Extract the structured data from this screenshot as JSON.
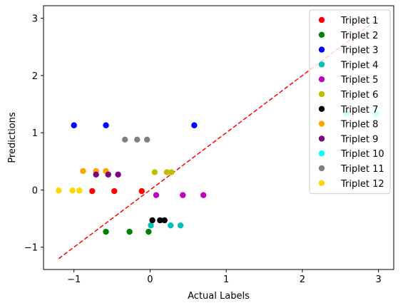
{
  "chart_data": {
    "type": "scatter",
    "title": "",
    "xlabel": "Actual Labels",
    "ylabel": "Predictions",
    "xlim": [
      -1.4,
      3.2
    ],
    "ylim": [
      -1.39,
      3.22
    ],
    "xticks": [
      -1,
      0,
      1,
      2,
      3
    ],
    "xtick_labels": [
      "−1",
      "0",
      "1",
      "2",
      "3"
    ],
    "yticks": [
      -1,
      0,
      1,
      2,
      3
    ],
    "ytick_labels": [
      "−1",
      "0",
      "1",
      "2",
      "3"
    ],
    "grid": false,
    "legend_position": "top-right",
    "reference_line": {
      "x": [
        -1.2,
        3.0
      ],
      "y": [
        -1.2,
        3.0
      ],
      "style": "dashed",
      "color": "#ff0000"
    },
    "series": [
      {
        "name": "Triplet 1",
        "color": "#ff0000",
        "points": [
          [
            -0.76,
            -0.02
          ],
          [
            -0.47,
            -0.02
          ],
          [
            -0.11,
            -0.02
          ]
        ]
      },
      {
        "name": "Triplet 2",
        "color": "#008000",
        "points": [
          [
            -0.58,
            -0.73
          ],
          [
            -0.27,
            -0.73
          ],
          [
            -0.02,
            -0.73
          ]
        ]
      },
      {
        "name": "Triplet 3",
        "color": "#0000ff",
        "points": [
          [
            -1.0,
            1.13
          ],
          [
            -0.58,
            1.13
          ],
          [
            0.58,
            1.13
          ]
        ]
      },
      {
        "name": "Triplet 4",
        "color": "#00bfbf",
        "points": [
          [
            0.01,
            -0.62
          ],
          [
            0.27,
            -0.62
          ],
          [
            0.4,
            -0.62
          ]
        ]
      },
      {
        "name": "Triplet 5",
        "color": "#bf00bf",
        "points": [
          [
            0.08,
            -0.09
          ],
          [
            0.43,
            -0.09
          ],
          [
            0.7,
            -0.09
          ]
        ]
      },
      {
        "name": "Triplet 6",
        "color": "#bfbf00",
        "points": [
          [
            0.06,
            0.31
          ],
          [
            0.22,
            0.31
          ],
          [
            0.28,
            0.31
          ]
        ]
      },
      {
        "name": "Triplet 7",
        "color": "#000000",
        "points": [
          [
            0.03,
            -0.53
          ],
          [
            0.13,
            -0.53
          ],
          [
            0.19,
            -0.53
          ]
        ]
      },
      {
        "name": "Triplet 8",
        "color": "#ffa500",
        "points": [
          [
            -0.88,
            0.33
          ],
          [
            -0.71,
            0.33
          ],
          [
            -0.58,
            0.33
          ]
        ]
      },
      {
        "name": "Triplet 9",
        "color": "#800080",
        "points": [
          [
            -0.71,
            0.27
          ],
          [
            -0.55,
            0.27
          ],
          [
            -0.42,
            0.27
          ]
        ]
      },
      {
        "name": "Triplet 10",
        "color": "#00ffff",
        "points": [
          [
            2.58,
            1.33
          ],
          [
            2.97,
            1.33
          ]
        ]
      },
      {
        "name": "Triplet 11",
        "color": "#808080",
        "points": [
          [
            -0.33,
            0.88
          ],
          [
            -0.17,
            0.88
          ],
          [
            -0.04,
            0.88
          ]
        ]
      },
      {
        "name": "Triplet 12",
        "color": "#ffd700",
        "points": [
          [
            -1.2,
            -0.01
          ],
          [
            -1.02,
            -0.01
          ],
          [
            -0.93,
            -0.01
          ]
        ]
      }
    ]
  }
}
